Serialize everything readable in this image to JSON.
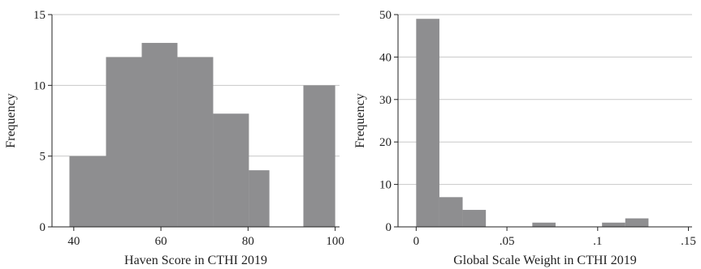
{
  "chart_data": [
    {
      "type": "bar",
      "xlabel": "Haven Score in CTHI 2019",
      "ylabel": "Frequency",
      "bin_edges": [
        39,
        47.4,
        55.6,
        63.8,
        72,
        80.2,
        84.9,
        92.7,
        100
      ],
      "values": [
        5,
        12,
        13,
        12,
        8,
        4,
        0,
        10
      ],
      "xlim": [
        35,
        101
      ],
      "ylim": [
        0,
        15
      ],
      "xticks": [
        40,
        60,
        80,
        100
      ],
      "xtick_labels": [
        "40",
        "60",
        "80",
        "100"
      ],
      "yticks": [
        0,
        5,
        10,
        15
      ],
      "ytick_labels": [
        "0",
        "5",
        "10",
        "15"
      ],
      "grid": true,
      "bar_color": "#8e8e90"
    },
    {
      "type": "bar",
      "xlabel": "Global Scale Weight in CTHI 2019",
      "ylabel": "Frequency",
      "bin_edges": [
        0,
        0.0128,
        0.0256,
        0.0384,
        0.0512,
        0.064,
        0.0768,
        0.0896,
        0.1024,
        0.1152,
        0.128
      ],
      "values": [
        49,
        7,
        4,
        0,
        0,
        1,
        0,
        0,
        1,
        2
      ],
      "xlim": [
        -0.01,
        0.152
      ],
      "ylim": [
        0,
        50
      ],
      "xticks": [
        0,
        0.05,
        0.1,
        0.15
      ],
      "xtick_labels": [
        "0",
        ".05",
        ".1",
        ".15"
      ],
      "yticks": [
        0,
        10,
        20,
        30,
        40,
        50
      ],
      "ytick_labels": [
        "0",
        "10",
        "20",
        "30",
        "40",
        "50"
      ],
      "grid": true,
      "bar_color": "#8e8e90"
    }
  ]
}
